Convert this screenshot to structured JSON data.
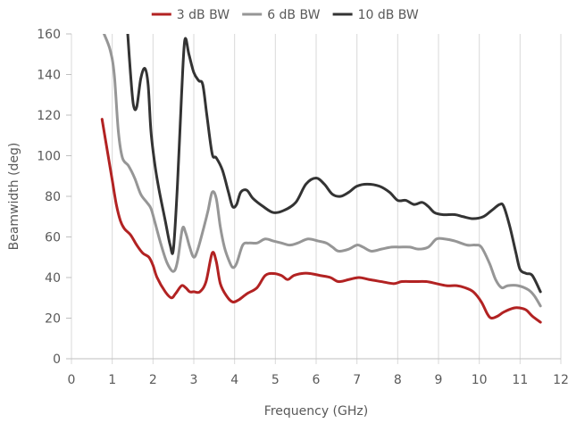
{
  "chart_data": {
    "type": "line",
    "title": "",
    "xlabel": "Frequency (GHz)",
    "ylabel": "Beamwidth (deg)",
    "xlim": [
      0,
      12
    ],
    "ylim": [
      0,
      160
    ],
    "x_ticks": [
      "0",
      "1",
      "2",
      "3",
      "4",
      "5",
      "6",
      "7",
      "8",
      "9",
      "10",
      "11",
      "12"
    ],
    "y_ticks": [
      "0",
      "20",
      "40",
      "60",
      "80",
      "100",
      "120",
      "140",
      "160"
    ],
    "grid": "vertical",
    "legend_position": "top",
    "series": [
      {
        "name": "3 dB BW",
        "color": "#B22222",
        "points": [
          [
            0.75,
            118
          ],
          [
            0.9,
            100
          ],
          [
            1.0,
            88
          ],
          [
            1.1,
            76
          ],
          [
            1.2,
            68
          ],
          [
            1.3,
            64
          ],
          [
            1.45,
            61
          ],
          [
            1.6,
            56
          ],
          [
            1.75,
            52
          ],
          [
            1.9,
            50
          ],
          [
            2.0,
            46
          ],
          [
            2.1,
            40
          ],
          [
            2.3,
            33
          ],
          [
            2.45,
            30
          ],
          [
            2.55,
            32
          ],
          [
            2.7,
            36
          ],
          [
            2.8,
            35
          ],
          [
            2.9,
            33
          ],
          [
            3.0,
            33
          ],
          [
            3.15,
            33
          ],
          [
            3.3,
            38
          ],
          [
            3.45,
            52
          ],
          [
            3.55,
            48
          ],
          [
            3.65,
            37
          ],
          [
            3.8,
            31
          ],
          [
            3.95,
            28
          ],
          [
            4.1,
            29
          ],
          [
            4.3,
            32
          ],
          [
            4.55,
            35
          ],
          [
            4.75,
            41
          ],
          [
            4.95,
            42
          ],
          [
            5.15,
            41
          ],
          [
            5.3,
            39
          ],
          [
            5.45,
            41
          ],
          [
            5.65,
            42
          ],
          [
            5.85,
            42
          ],
          [
            6.1,
            41
          ],
          [
            6.35,
            40
          ],
          [
            6.55,
            38
          ],
          [
            6.8,
            39
          ],
          [
            7.05,
            40
          ],
          [
            7.3,
            39
          ],
          [
            7.6,
            38
          ],
          [
            7.9,
            37
          ],
          [
            8.1,
            38
          ],
          [
            8.4,
            38
          ],
          [
            8.7,
            38
          ],
          [
            8.95,
            37
          ],
          [
            9.2,
            36
          ],
          [
            9.45,
            36
          ],
          [
            9.65,
            35
          ],
          [
            9.85,
            33
          ],
          [
            10.05,
            28
          ],
          [
            10.2,
            22
          ],
          [
            10.3,
            20
          ],
          [
            10.45,
            21
          ],
          [
            10.6,
            23
          ],
          [
            10.85,
            25
          ],
          [
            11.0,
            25
          ],
          [
            11.15,
            24
          ],
          [
            11.3,
            21
          ],
          [
            11.5,
            18
          ]
        ]
      },
      {
        "name": "6 dB BW",
        "color": "#969696",
        "points": [
          [
            0.8,
            160
          ],
          [
            0.95,
            152
          ],
          [
            1.05,
            140
          ],
          [
            1.15,
            112
          ],
          [
            1.25,
            99
          ],
          [
            1.4,
            95
          ],
          [
            1.55,
            89
          ],
          [
            1.7,
            81
          ],
          [
            1.85,
            77
          ],
          [
            1.95,
            74
          ],
          [
            2.05,
            67
          ],
          [
            2.2,
            56
          ],
          [
            2.35,
            47
          ],
          [
            2.5,
            43
          ],
          [
            2.6,
            48
          ],
          [
            2.72,
            64
          ],
          [
            2.8,
            62
          ],
          [
            2.9,
            55
          ],
          [
            3.0,
            50
          ],
          [
            3.1,
            54
          ],
          [
            3.25,
            65
          ],
          [
            3.35,
            73
          ],
          [
            3.45,
            82
          ],
          [
            3.55,
            79
          ],
          [
            3.65,
            65
          ],
          [
            3.75,
            55
          ],
          [
            3.85,
            49
          ],
          [
            3.95,
            45
          ],
          [
            4.05,
            47
          ],
          [
            4.2,
            56
          ],
          [
            4.35,
            57
          ],
          [
            4.55,
            57
          ],
          [
            4.75,
            59
          ],
          [
            4.95,
            58
          ],
          [
            5.15,
            57
          ],
          [
            5.35,
            56
          ],
          [
            5.55,
            57
          ],
          [
            5.8,
            59
          ],
          [
            6.05,
            58
          ],
          [
            6.25,
            57
          ],
          [
            6.4,
            55
          ],
          [
            6.55,
            53
          ],
          [
            6.8,
            54
          ],
          [
            7.0,
            56
          ],
          [
            7.15,
            55
          ],
          [
            7.35,
            53
          ],
          [
            7.6,
            54
          ],
          [
            7.85,
            55
          ],
          [
            8.05,
            55
          ],
          [
            8.3,
            55
          ],
          [
            8.5,
            54
          ],
          [
            8.75,
            55
          ],
          [
            8.95,
            59
          ],
          [
            9.15,
            59
          ],
          [
            9.4,
            58
          ],
          [
            9.7,
            56
          ],
          [
            9.9,
            56
          ],
          [
            10.05,
            55
          ],
          [
            10.25,
            47
          ],
          [
            10.4,
            39
          ],
          [
            10.55,
            35
          ],
          [
            10.7,
            36
          ],
          [
            10.95,
            36
          ],
          [
            11.2,
            34
          ],
          [
            11.35,
            31
          ],
          [
            11.5,
            26
          ]
        ]
      },
      {
        "name": "10 dB BW",
        "color": "#333333",
        "points": [
          [
            1.38,
            160
          ],
          [
            1.45,
            140
          ],
          [
            1.52,
            125
          ],
          [
            1.6,
            124
          ],
          [
            1.7,
            138
          ],
          [
            1.8,
            143
          ],
          [
            1.88,
            135
          ],
          [
            1.95,
            112
          ],
          [
            2.05,
            95
          ],
          [
            2.15,
            83
          ],
          [
            2.3,
            68
          ],
          [
            2.42,
            56
          ],
          [
            2.5,
            54
          ],
          [
            2.6,
            86
          ],
          [
            2.7,
            130
          ],
          [
            2.78,
            157
          ],
          [
            2.88,
            150
          ],
          [
            3.0,
            141
          ],
          [
            3.12,
            137
          ],
          [
            3.22,
            135
          ],
          [
            3.32,
            120
          ],
          [
            3.45,
            101
          ],
          [
            3.55,
            99
          ],
          [
            3.7,
            93
          ],
          [
            3.85,
            82
          ],
          [
            3.95,
            75
          ],
          [
            4.05,
            76
          ],
          [
            4.15,
            82
          ],
          [
            4.3,
            83
          ],
          [
            4.45,
            79
          ],
          [
            4.7,
            75
          ],
          [
            4.95,
            72
          ],
          [
            5.2,
            73
          ],
          [
            5.5,
            77
          ],
          [
            5.75,
            86
          ],
          [
            6.0,
            89
          ],
          [
            6.2,
            86
          ],
          [
            6.4,
            81
          ],
          [
            6.6,
            80
          ],
          [
            6.8,
            82
          ],
          [
            7.0,
            85
          ],
          [
            7.25,
            86
          ],
          [
            7.55,
            85
          ],
          [
            7.8,
            82
          ],
          [
            8.0,
            78
          ],
          [
            8.2,
            78
          ],
          [
            8.4,
            76
          ],
          [
            8.6,
            77
          ],
          [
            8.75,
            75
          ],
          [
            8.9,
            72
          ],
          [
            9.1,
            71
          ],
          [
            9.4,
            71
          ],
          [
            9.6,
            70
          ],
          [
            9.85,
            69
          ],
          [
            10.1,
            70
          ],
          [
            10.3,
            73
          ],
          [
            10.5,
            76
          ],
          [
            10.6,
            75
          ],
          [
            10.75,
            65
          ],
          [
            10.9,
            52
          ],
          [
            11.0,
            44
          ],
          [
            11.15,
            42
          ],
          [
            11.3,
            41
          ],
          [
            11.5,
            33
          ]
        ]
      }
    ]
  }
}
